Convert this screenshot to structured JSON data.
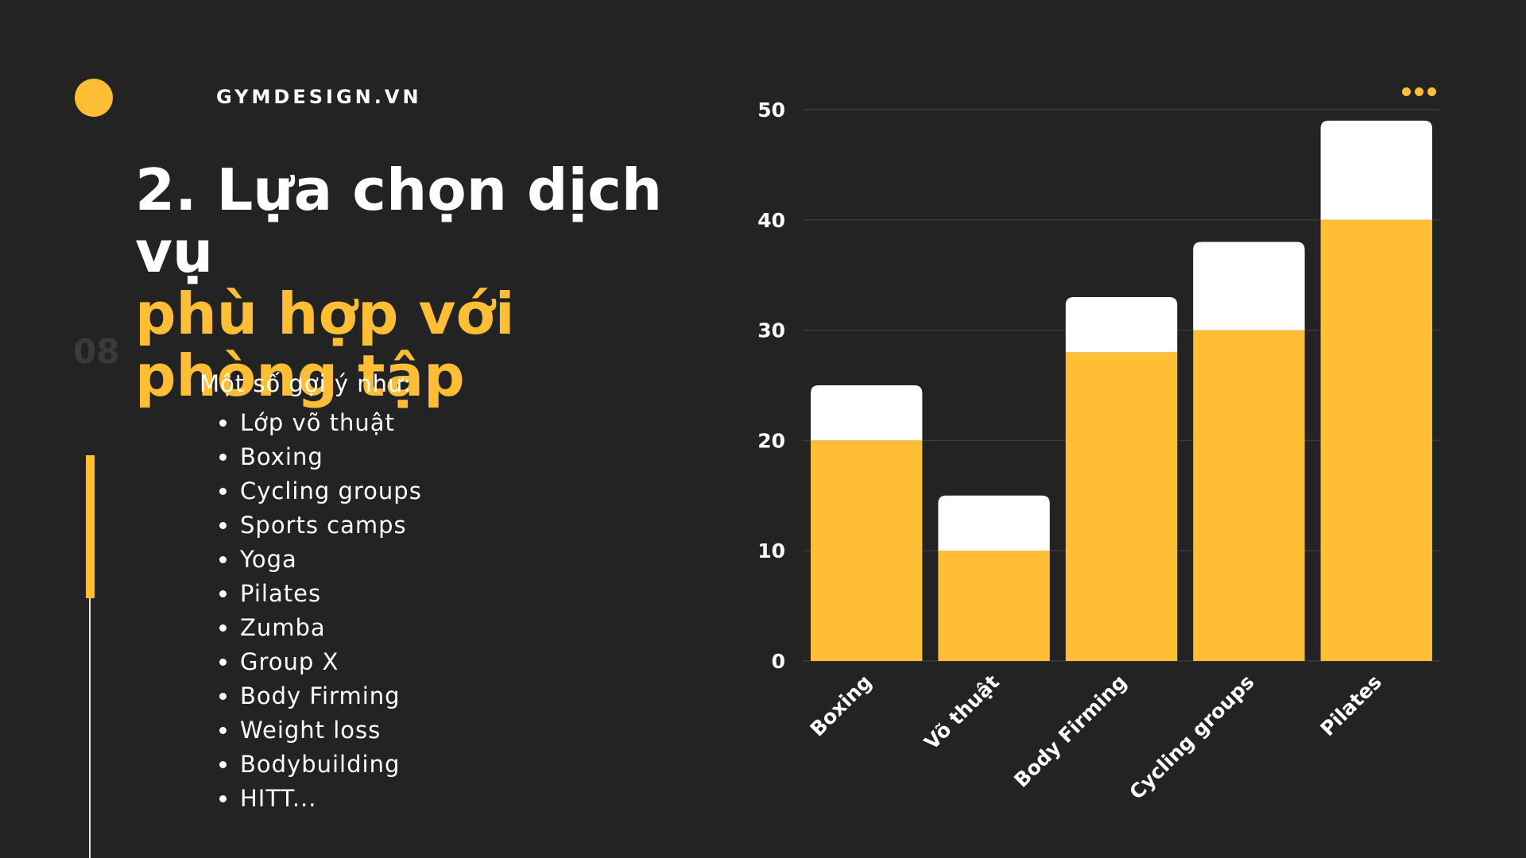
{
  "brand": "GYMDESIGN.VN",
  "page_number": "08",
  "title": {
    "line1": "2. Lựa chọn dịch vụ",
    "line2": "phù hợp với phòng tập"
  },
  "intro": "Một số gợi ý như:",
  "services": [
    "Lớp võ thuật",
    "Boxing",
    "Cycling groups",
    "Sports camps",
    "Yoga",
    "Pilates",
    "Zumba",
    "Group X",
    "Body Firming",
    "Weight loss",
    "Bodybuilding",
    "HITT..."
  ],
  "menu_icon": "more-dots-icon",
  "colors": {
    "background": "#232323",
    "accent": "#FFBE33",
    "white": "#FFFFFF",
    "grid": "#3A3A3A"
  },
  "chart_data": {
    "type": "bar",
    "stacked": true,
    "categories": [
      "Boxing",
      "Võ thuật",
      "Body Firming",
      "Cycling groups",
      "Pilates"
    ],
    "series": [
      {
        "color": "#FFBE33",
        "values": [
          20,
          10,
          28,
          30,
          40
        ]
      },
      {
        "color": "#FFFFFF",
        "values": [
          5,
          5,
          5,
          8,
          9
        ]
      }
    ],
    "ylim": [
      0,
      50
    ],
    "yticks": [
      0,
      10,
      20,
      30,
      40,
      50
    ],
    "grid": true,
    "xlabel": "",
    "ylabel": ""
  }
}
